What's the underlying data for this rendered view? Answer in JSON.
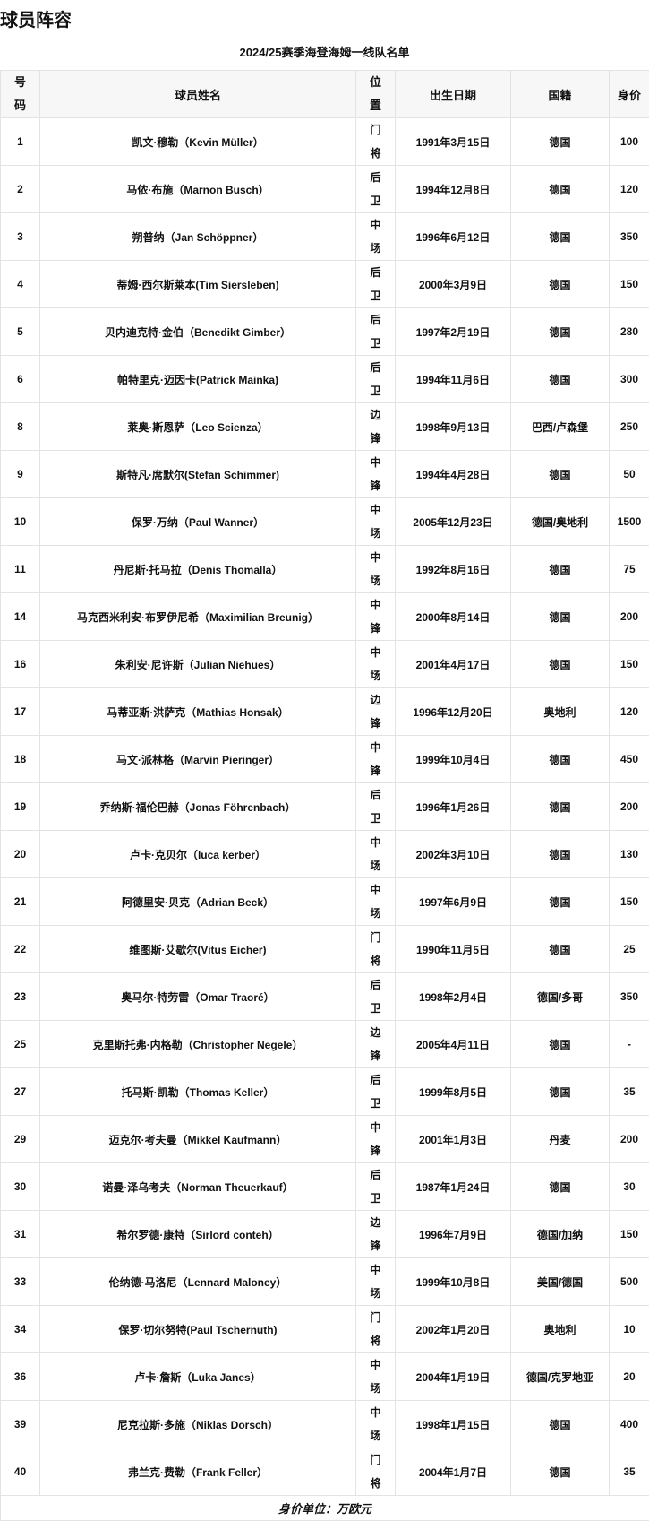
{
  "page_title": "球员阵容",
  "table_title": "2024/25赛季海登海姆一线队名单",
  "headers": {
    "number": "号码",
    "name": "球员姓名",
    "position": "位置",
    "birth": "出生日期",
    "nationality": "国籍",
    "value": "身价"
  },
  "players": [
    {
      "number": "1",
      "name": "凯文·穆勒（Kevin Müller）",
      "position": "门将",
      "birth": "1991年3月15日",
      "nationality": "德国",
      "value": "100"
    },
    {
      "number": "2",
      "name": "马侬·布施（Marnon Busch）",
      "position": "后卫",
      "birth": "1994年12月8日",
      "nationality": "德国",
      "value": "120"
    },
    {
      "number": "3",
      "name": "朔普纳（Jan Schöppner）",
      "position": "中场",
      "birth": "1996年6月12日",
      "nationality": "德国",
      "value": "350"
    },
    {
      "number": "4",
      "name": "蒂姆·西尔斯莱本(Tim Siersleben)",
      "position": "后卫",
      "birth": "2000年3月9日",
      "nationality": "德国",
      "value": "150"
    },
    {
      "number": "5",
      "name": "贝内迪克特·金伯（Benedikt Gimber）",
      "position": "后卫",
      "birth": "1997年2月19日",
      "nationality": "德国",
      "value": "280"
    },
    {
      "number": "6",
      "name": "帕特里克·迈因卡(Patrick Mainka)",
      "position": "后卫",
      "birth": "1994年11月6日",
      "nationality": "德国",
      "value": "300"
    },
    {
      "number": "8",
      "name": "莱奥·斯恩萨（Leo Scienza）",
      "position": "边锋",
      "birth": "1998年9月13日",
      "nationality": "巴西/卢森堡",
      "value": "250"
    },
    {
      "number": "9",
      "name": "斯特凡·席默尔(Stefan Schimmer)",
      "position": "中锋",
      "birth": "1994年4月28日",
      "nationality": "德国",
      "value": "50"
    },
    {
      "number": "10",
      "name": "保罗·万纳（Paul Wanner）",
      "position": "中场",
      "birth": "2005年12月23日",
      "nationality": "德国/奥地利",
      "value": "1500"
    },
    {
      "number": "11",
      "name": "丹尼斯·托马拉（Denis Thomalla）",
      "position": "中场",
      "birth": "1992年8月16日",
      "nationality": "德国",
      "value": "75"
    },
    {
      "number": "14",
      "name": "马克西米利安·布罗伊尼希（Maximilian Breunig）",
      "position": "中锋",
      "birth": "2000年8月14日",
      "nationality": "德国",
      "value": "200"
    },
    {
      "number": "16",
      "name": "朱利安·尼许斯（Julian Niehues）",
      "position": "中场",
      "birth": "2001年4月17日",
      "nationality": "德国",
      "value": "150"
    },
    {
      "number": "17",
      "name": "马蒂亚斯·洪萨克（Mathias Honsak）",
      "position": "边锋",
      "birth": "1996年12月20日",
      "nationality": "奥地利",
      "value": "120"
    },
    {
      "number": "18",
      "name": "马文·派林格（Marvin Pieringer）",
      "position": "中锋",
      "birth": "1999年10月4日",
      "nationality": "德国",
      "value": "450"
    },
    {
      "number": "19",
      "name": "乔纳斯·福伦巴赫（Jonas Föhrenbach）",
      "position": "后卫",
      "birth": "1996年1月26日",
      "nationality": "德国",
      "value": "200"
    },
    {
      "number": "20",
      "name": "卢卡·克贝尔（luca kerber）",
      "position": "中场",
      "birth": "2002年3月10日",
      "nationality": "德国",
      "value": "130"
    },
    {
      "number": "21",
      "name": "阿德里安·贝克（Adrian Beck）",
      "position": "中场",
      "birth": "1997年6月9日",
      "nationality": "德国",
      "value": "150"
    },
    {
      "number": "22",
      "name": "维图斯·艾歇尔(Vitus Eicher)",
      "position": "门将",
      "birth": "1990年11月5日",
      "nationality": "德国",
      "value": "25"
    },
    {
      "number": "23",
      "name": "奥马尔·特劳雷（Omar Traoré）",
      "position": "后卫",
      "birth": "1998年2月4日",
      "nationality": "德国/多哥",
      "value": "350"
    },
    {
      "number": "25",
      "name": "克里斯托弗·内格勒（Christopher Negele）",
      "position": "边锋",
      "birth": "2005年4月11日",
      "nationality": "德国",
      "value": "-"
    },
    {
      "number": "27",
      "name": "托马斯·凯勒（Thomas Keller）",
      "position": "后卫",
      "birth": "1999年8月5日",
      "nationality": "德国",
      "value": "35"
    },
    {
      "number": "29",
      "name": "迈克尔·考夫曼（Mikkel Kaufmann）",
      "position": "中锋",
      "birth": "2001年1月3日",
      "nationality": "丹麦",
      "value": "200"
    },
    {
      "number": "30",
      "name": "诺曼·泽乌考夫（Norman Theuerkauf）",
      "position": "后卫",
      "birth": "1987年1月24日",
      "nationality": "德国",
      "value": "30"
    },
    {
      "number": "31",
      "name": "希尔罗德·康特（Sirlord conteh）",
      "position": "边锋",
      "birth": "1996年7月9日",
      "nationality": "德国/加纳",
      "value": "150"
    },
    {
      "number": "33",
      "name": "伦纳德·马洛尼（Lennard Maloney）",
      "position": "中场",
      "birth": "1999年10月8日",
      "nationality": "美国/德国",
      "value": "500"
    },
    {
      "number": "34",
      "name": "保罗·切尔努特(Paul Tschernuth)",
      "position": "门将",
      "birth": "2002年1月20日",
      "nationality": "奥地利",
      "value": "10"
    },
    {
      "number": "36",
      "name": "卢卡·詹斯（Luka Janes）",
      "position": "中场",
      "birth": "2004年1月19日",
      "nationality": "德国/克罗地亚",
      "value": "20"
    },
    {
      "number": "39",
      "name": "尼克拉斯·多施（Niklas Dorsch）",
      "position": "中场",
      "birth": "1998年1月15日",
      "nationality": "德国",
      "value": "400"
    },
    {
      "number": "40",
      "name": "弗兰克·费勒（Frank Feller）",
      "position": "门将",
      "birth": "2004年1月7日",
      "nationality": "德国",
      "value": "35"
    }
  ],
  "footer_note": "身价单位：万欧元"
}
